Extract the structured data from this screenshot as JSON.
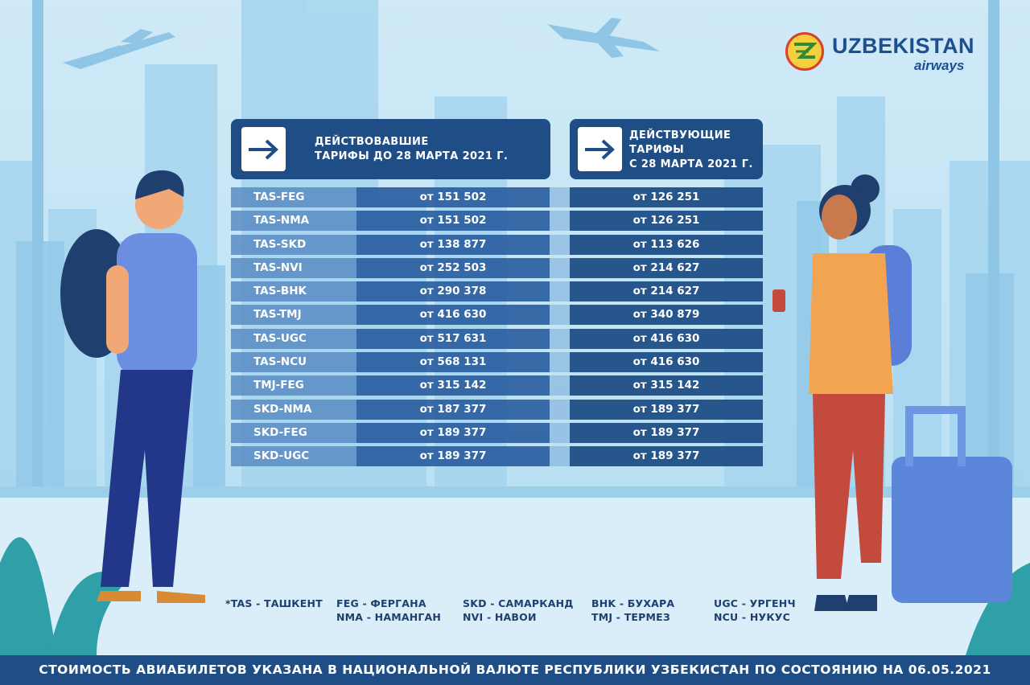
{
  "brand": {
    "name": "UZBEKISTAN",
    "sub": "airways",
    "colors": {
      "primary": "#1f4e86",
      "logo_yellow": "#f4d03f",
      "logo_red": "#d9412b"
    }
  },
  "headers": {
    "old_line1": "ДЕЙСТВОВАВШИЕ",
    "old_line2": "ТАРИФЫ ДО 28 МАРТА 2021 Г.",
    "new_line1": "ДЕЙСТВУЮЩИЕ",
    "new_line2": "ТАРИФЫ",
    "new_line3": "С 28 МАРТА 2021 Г.",
    "arrow_icon": "arrow-right-icon"
  },
  "fares": [
    {
      "route": "TAS-FEG",
      "old": "от 151 502",
      "new": "от 126 251"
    },
    {
      "route": "TAS-NMA",
      "old": "от 151 502",
      "new": "от 126 251"
    },
    {
      "route": "TAS-SKD",
      "old": "от 138 877",
      "new": "от 113 626"
    },
    {
      "route": "TAS-NVI",
      "old": "от 252 503",
      "new": "от 214 627"
    },
    {
      "route": "TAS-BHK",
      "old": "от 290 378",
      "new": "от 214 627"
    },
    {
      "route": "TAS-TMJ",
      "old": "от 416 630",
      "new": "от 340 879"
    },
    {
      "route": "TAS-UGC",
      "old": "от 517 631",
      "new": "от 416 630"
    },
    {
      "route": "TAS-NCU",
      "old": "от 568 131",
      "new": "от 416 630"
    },
    {
      "route": "TMJ-FEG",
      "old": "от 315 142",
      "new": "от 315 142"
    },
    {
      "route": "SKD-NMA",
      "old": "от 187 377",
      "new": "от 189 377"
    },
    {
      "route": "SKD-FEG",
      "old": "от 189 377",
      "new": "от 189 377"
    },
    {
      "route": "SKD-UGC",
      "old": "от 189 377",
      "new": "от 189 377"
    }
  ],
  "legend": {
    "col1": [
      "*TAS - ТАШКЕНТ"
    ],
    "col2": [
      "FEG - ФЕРГАНА",
      "NMA - НАМАНГАН"
    ],
    "col3": [
      "SKD - САМАРКАНД",
      "NVI - НАВОИ"
    ],
    "col4": [
      "BHK - БУХАРА",
      "TMJ - ТЕРМЕЗ"
    ],
    "col5": [
      "UGC - УРГЕНЧ",
      "NCU - НУКУС"
    ]
  },
  "footer": "СТОИМОСТЬ АВИАБИЛЕТОВ УКАЗАНА В НАЦИОНАЛЬНОЙ ВАЛЮТЕ РЕСПУБЛИКИ УЗБЕКИСТАН ПО СОСТОЯНИЮ НА 06.05.2021"
}
